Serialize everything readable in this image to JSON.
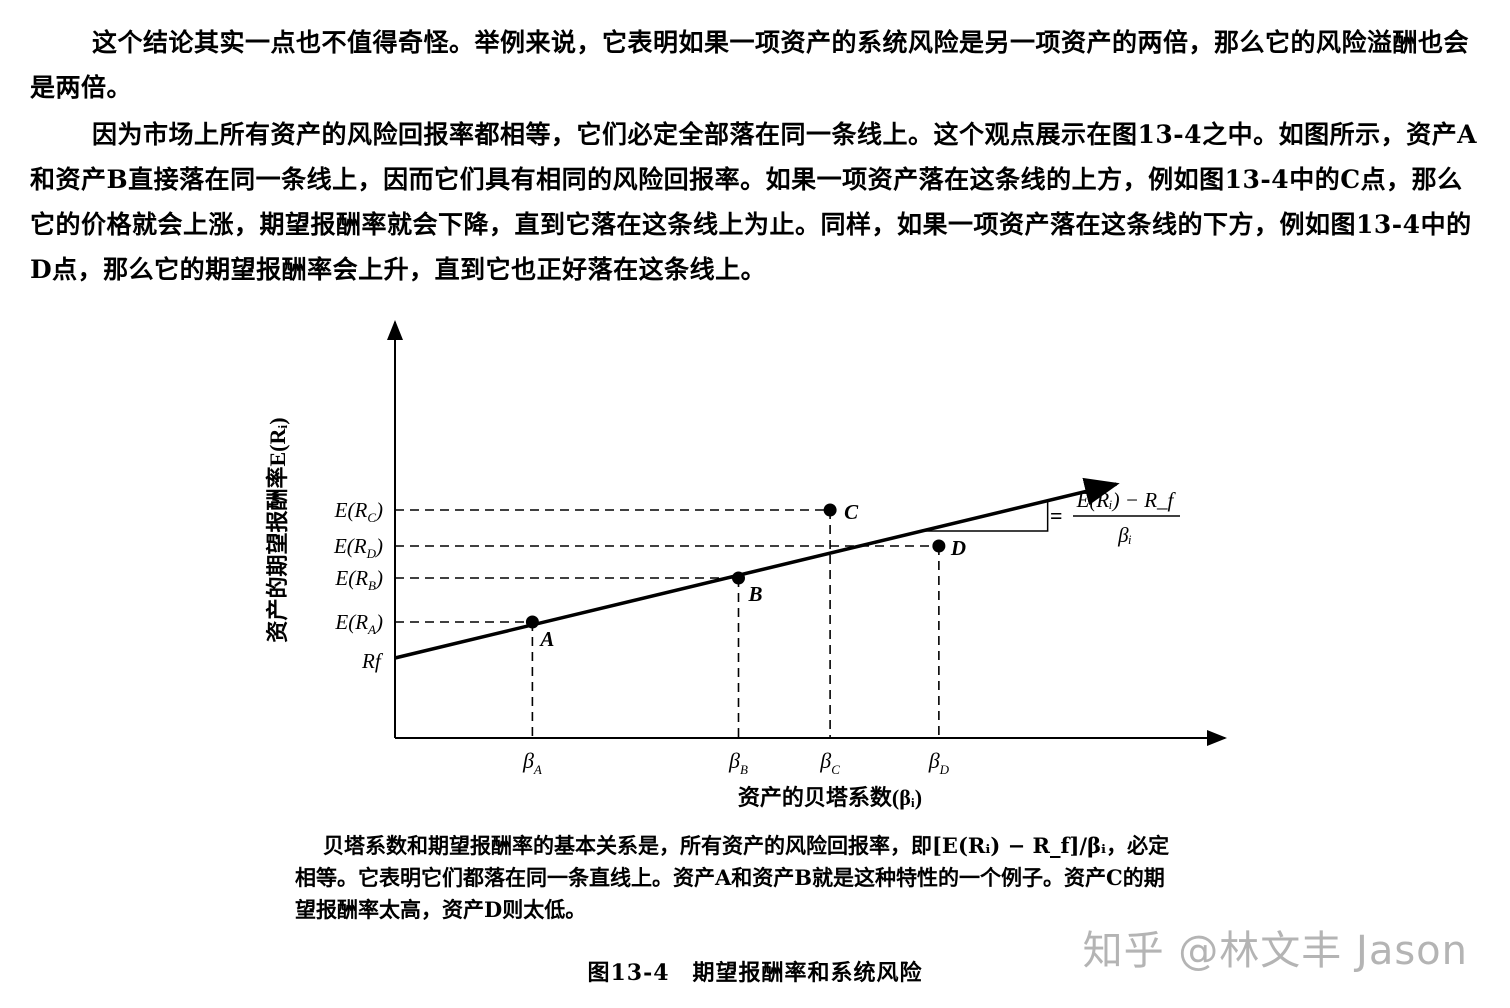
{
  "paragraphs": [
    "这个结论其实一点也不值得奇怪。举例来说，它表明如果一项资产的系统风险是另一项资产的两倍，那么它的风险溢酬也会是两倍。",
    "因为市场上所有资产的风险回报率都相等，它们必定全部落在同一条线上。这个观点展示在图13-4之中。如图所示，资产A和资产B直接落在同一条线上，因而它们具有相同的风险回报率。如果一项资产落在这条线的上方，例如图13-4中的C点，那么它的价格就会上涨，期望报酬率就会下降，直到它落在这条线上为止。同样，如果一项资产落在这条线的下方，例如图13-4中的D点，那么它的期望报酬率会上升，直到它也正好落在这条线上。"
  ],
  "figure": {
    "y_axis_label": "资产的期望报酬率E(Rᵢ)",
    "x_axis_label": "资产的贝塔系数(βᵢ)",
    "slope_label": {
      "equals": "=",
      "numerator": "E(Rᵢ) − R_f",
      "denominator": "βᵢ"
    },
    "points": [
      {
        "label": "A",
        "beta_tick": "βA",
        "return_tick": "E(RA)"
      },
      {
        "label": "B",
        "beta_tick": "βB",
        "return_tick": "E(RB)"
      },
      {
        "label": "C",
        "beta_tick": "βC",
        "return_tick": "E(RC)"
      },
      {
        "label": "D",
        "beta_tick": "βD",
        "return_tick": "E(RD)"
      }
    ],
    "intercept_label": "Rf",
    "tick_values": {
      "rf": 1.0,
      "A": {
        "beta": 1.2,
        "return": 1.45
      },
      "B": {
        "beta": 3.0,
        "return": 2.0
      },
      "C": {
        "beta": 3.8,
        "return": 2.85
      },
      "D": {
        "beta": 4.75,
        "return": 2.4
      }
    },
    "line_slope": 0.345
  },
  "caption": "贝塔系数和期望报酬率的基本关系是，所有资产的风险回报率，即[E(Rᵢ) − R_f]/βᵢ，必定相等。它表明它们都落在同一条直线上。资产A和资产B就是这种特性的一个例子。资产C的期望报酬率太高，资产D则太低。",
  "figure_title": "图13-4　期望报酬率和系统风险",
  "watermark": "知乎 @林文丰 Jason"
}
